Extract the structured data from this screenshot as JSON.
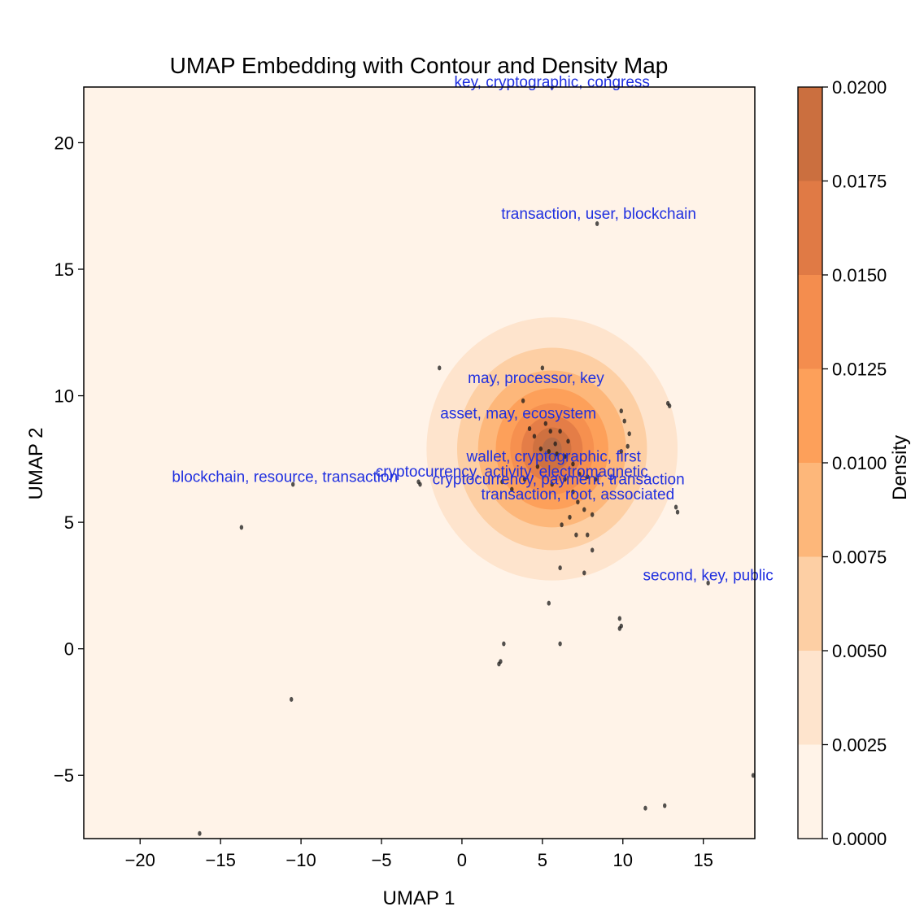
{
  "chart_data": {
    "type": "scatter",
    "title": "UMAP Embedding with Contour and Density Map",
    "xlabel": "UMAP 1",
    "ylabel": "UMAP 2",
    "xlim": [
      -23.5,
      18.2
    ],
    "ylim": [
      -7.5,
      22.2
    ],
    "x_ticks": [
      -20,
      -15,
      -10,
      -5,
      0,
      5,
      10,
      15
    ],
    "y_ticks": [
      -5,
      0,
      5,
      10,
      15,
      20
    ],
    "x_tick_labels": [
      "−20",
      "−15",
      "−10",
      "−5",
      "0",
      "5",
      "10",
      "15"
    ],
    "y_tick_labels": [
      "−5",
      "0",
      "5",
      "10",
      "15",
      "20"
    ],
    "colorbar": {
      "label": "Density",
      "min": 0.0,
      "max": 0.02,
      "levels": [
        0.0,
        0.0025,
        0.005,
        0.0075,
        0.01,
        0.0125,
        0.015,
        0.0175,
        0.02
      ],
      "tick_labels": [
        "0.0000",
        "0.0025",
        "0.0050",
        "0.0075",
        "0.0100",
        "0.0125",
        "0.0150",
        "0.0175",
        "0.0200"
      ],
      "colors": [
        "#fff3e8",
        "#fee4cd",
        "#fdcfa4",
        "#fdb77a",
        "#fda05a",
        "#f48d4e",
        "#e07a45",
        "#cb6f3f",
        "#b06a48"
      ]
    },
    "density_center": [
      5.6,
      7.9
    ],
    "contour_levels": [
      {
        "level": 0.0025,
        "rx": 7.8,
        "ry": 5.2
      },
      {
        "level": 0.005,
        "rx": 5.9,
        "ry": 4.0
      },
      {
        "level": 0.0075,
        "rx": 4.6,
        "ry": 3.1
      },
      {
        "level": 0.01,
        "rx": 3.5,
        "ry": 2.4
      },
      {
        "level": 0.0125,
        "rx": 2.6,
        "ry": 1.8
      },
      {
        "level": 0.015,
        "rx": 1.9,
        "ry": 1.3
      },
      {
        "level": 0.0175,
        "rx": 1.2,
        "ry": 0.85
      },
      {
        "level": 0.02,
        "rx": 0.6,
        "ry": 0.45
      }
    ],
    "annotations": [
      {
        "text": "key, cryptographic, congress",
        "x": 5.6,
        "y": 22.2
      },
      {
        "text": "transaction, user, blockchain",
        "x": 8.5,
        "y": 17.0
      },
      {
        "text": "may, processor, key",
        "x": 4.6,
        "y": 10.5
      },
      {
        "text": "asset, may, ecosystem",
        "x": 3.5,
        "y": 9.1
      },
      {
        "text": "wallet, cryptographic, first",
        "x": 5.7,
        "y": 7.4
      },
      {
        "text": "blockchain, resource, transaction",
        "x": -11.0,
        "y": 6.6
      },
      {
        "text": "cryptocurrency, activity, electromagnetic",
        "x": 3.1,
        "y": 6.8
      },
      {
        "text": "cryptocurrency, payment, transaction",
        "x": 6.0,
        "y": 6.5
      },
      {
        "text": "transaction, root, associated",
        "x": 7.2,
        "y": 5.9
      },
      {
        "text": "second, key, public",
        "x": 15.3,
        "y": 2.7
      }
    ],
    "points": [
      [
        5.6,
        22.2
      ],
      [
        8.4,
        16.8
      ],
      [
        -1.4,
        11.1
      ],
      [
        5.0,
        11.1
      ],
      [
        3.8,
        9.8
      ],
      [
        12.8,
        9.7
      ],
      [
        12.9,
        9.6
      ],
      [
        9.9,
        9.4
      ],
      [
        10.1,
        9.0
      ],
      [
        10.4,
        8.5
      ],
      [
        10.3,
        8.0
      ],
      [
        9.9,
        7.8
      ],
      [
        4.2,
        8.7
      ],
      [
        4.5,
        8.4
      ],
      [
        5.2,
        8.9
      ],
      [
        5.5,
        8.6
      ],
      [
        6.1,
        8.6
      ],
      [
        6.6,
        8.2
      ],
      [
        5.8,
        8.1
      ],
      [
        5.4,
        7.8
      ],
      [
        5.9,
        7.7
      ],
      [
        6.4,
        7.6
      ],
      [
        4.9,
        7.9
      ],
      [
        4.7,
        7.2
      ],
      [
        6.9,
        7.3
      ],
      [
        7.3,
        6.9
      ],
      [
        7.8,
        6.8
      ],
      [
        8.3,
        6.7
      ],
      [
        6.4,
        6.7
      ],
      [
        5.6,
        6.5
      ],
      [
        6.9,
        6.2
      ],
      [
        7.2,
        5.8
      ],
      [
        7.6,
        5.5
      ],
      [
        8.1,
        5.3
      ],
      [
        6.7,
        5.2
      ],
      [
        6.2,
        4.9
      ],
      [
        7.1,
        4.5
      ],
      [
        7.8,
        4.5
      ],
      [
        8.1,
        3.9
      ],
      [
        7.6,
        3.0
      ],
      [
        6.1,
        3.2
      ],
      [
        3.9,
        6.7
      ],
      [
        2.5,
        6.6
      ],
      [
        3.1,
        6.3
      ],
      [
        13.3,
        5.6
      ],
      [
        13.4,
        5.4
      ],
      [
        -2.7,
        6.6
      ],
      [
        -2.6,
        6.5
      ],
      [
        -10.5,
        6.5
      ],
      [
        -13.7,
        4.8
      ],
      [
        15.3,
        2.6
      ],
      [
        5.4,
        1.8
      ],
      [
        9.8,
        1.2
      ],
      [
        9.9,
        0.9
      ],
      [
        9.8,
        0.8
      ],
      [
        2.6,
        0.2
      ],
      [
        6.1,
        0.2
      ],
      [
        2.4,
        -0.5
      ],
      [
        2.3,
        -0.6
      ],
      [
        -10.6,
        -2.0
      ],
      [
        18.1,
        -5.0
      ],
      [
        11.4,
        -6.3
      ],
      [
        12.6,
        -6.2
      ],
      [
        -16.3,
        -7.3
      ]
    ]
  }
}
